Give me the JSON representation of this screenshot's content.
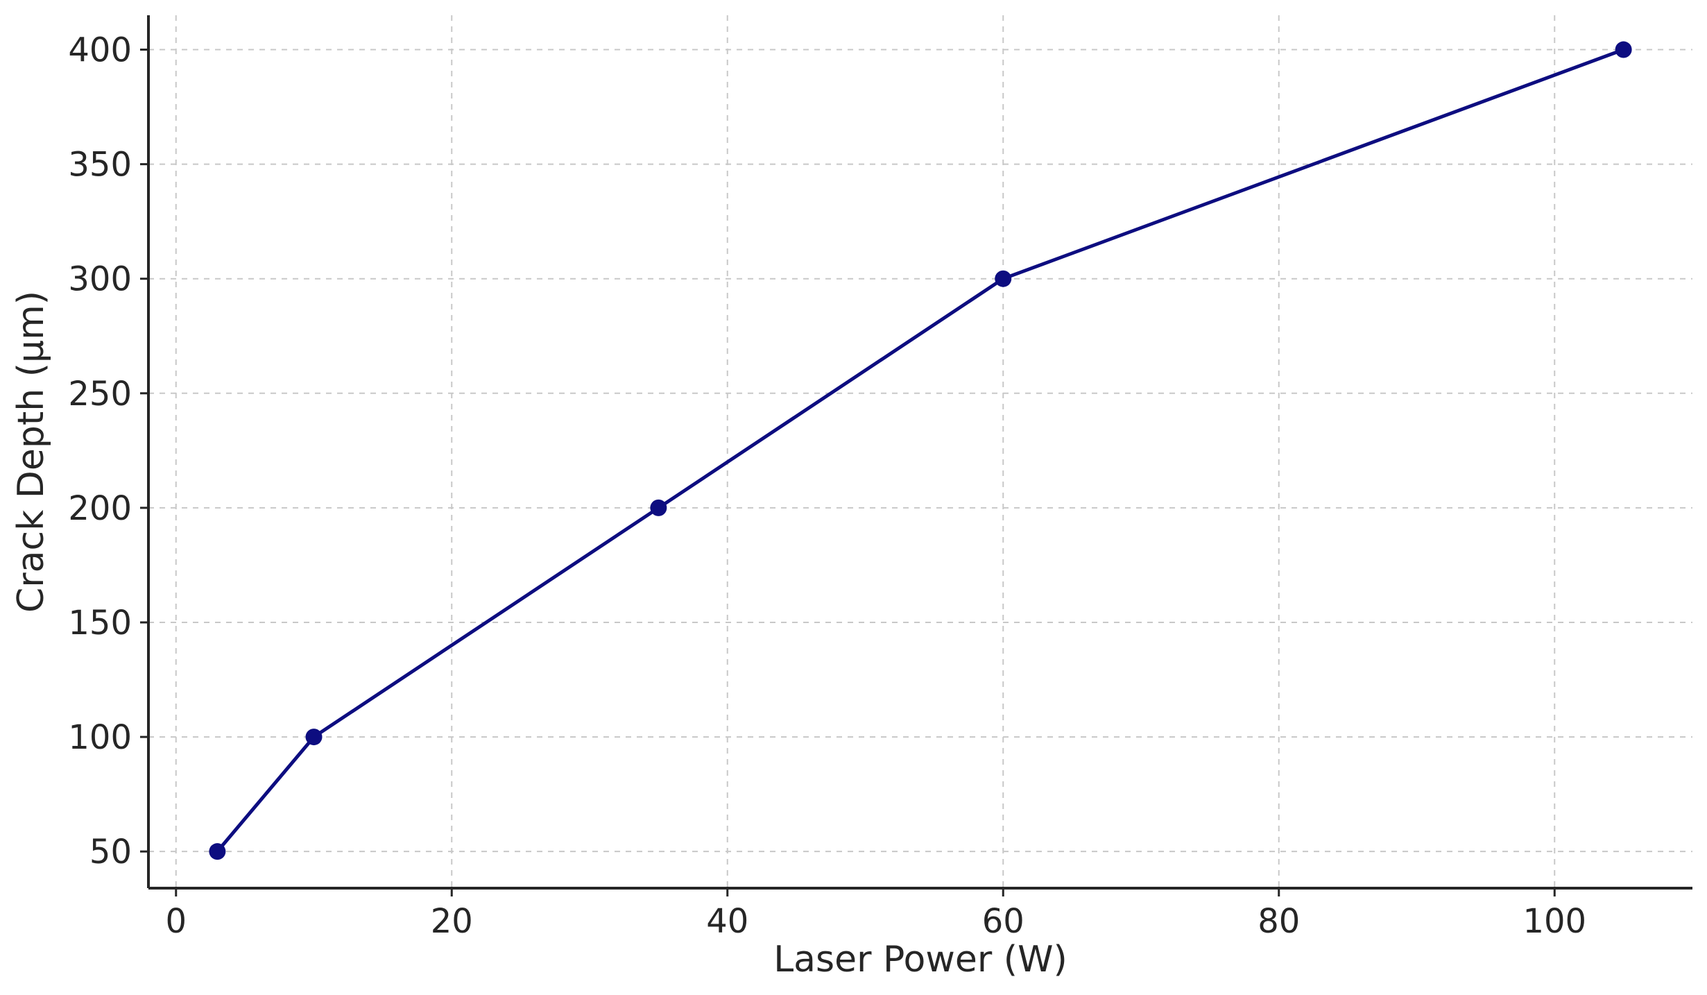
{
  "chart_data": {
    "type": "line",
    "title": "",
    "xlabel": "Laser Power (W)",
    "ylabel": "Crack Depth (μm)",
    "xlim": [
      -2,
      110
    ],
    "ylim": [
      34,
      415
    ],
    "xticks": [
      0,
      20,
      40,
      60,
      80,
      100
    ],
    "yticks": [
      50,
      100,
      150,
      200,
      250,
      300,
      350,
      400
    ],
    "grid": true,
    "legend": "none",
    "series": [
      {
        "color": "#0d0d80",
        "marker": "circle",
        "points": [
          {
            "x": 3,
            "y": 50
          },
          {
            "x": 10,
            "y": 100
          },
          {
            "x": 35,
            "y": 200
          },
          {
            "x": 60,
            "y": 300
          },
          {
            "x": 105,
            "y": 400
          }
        ]
      }
    ]
  }
}
